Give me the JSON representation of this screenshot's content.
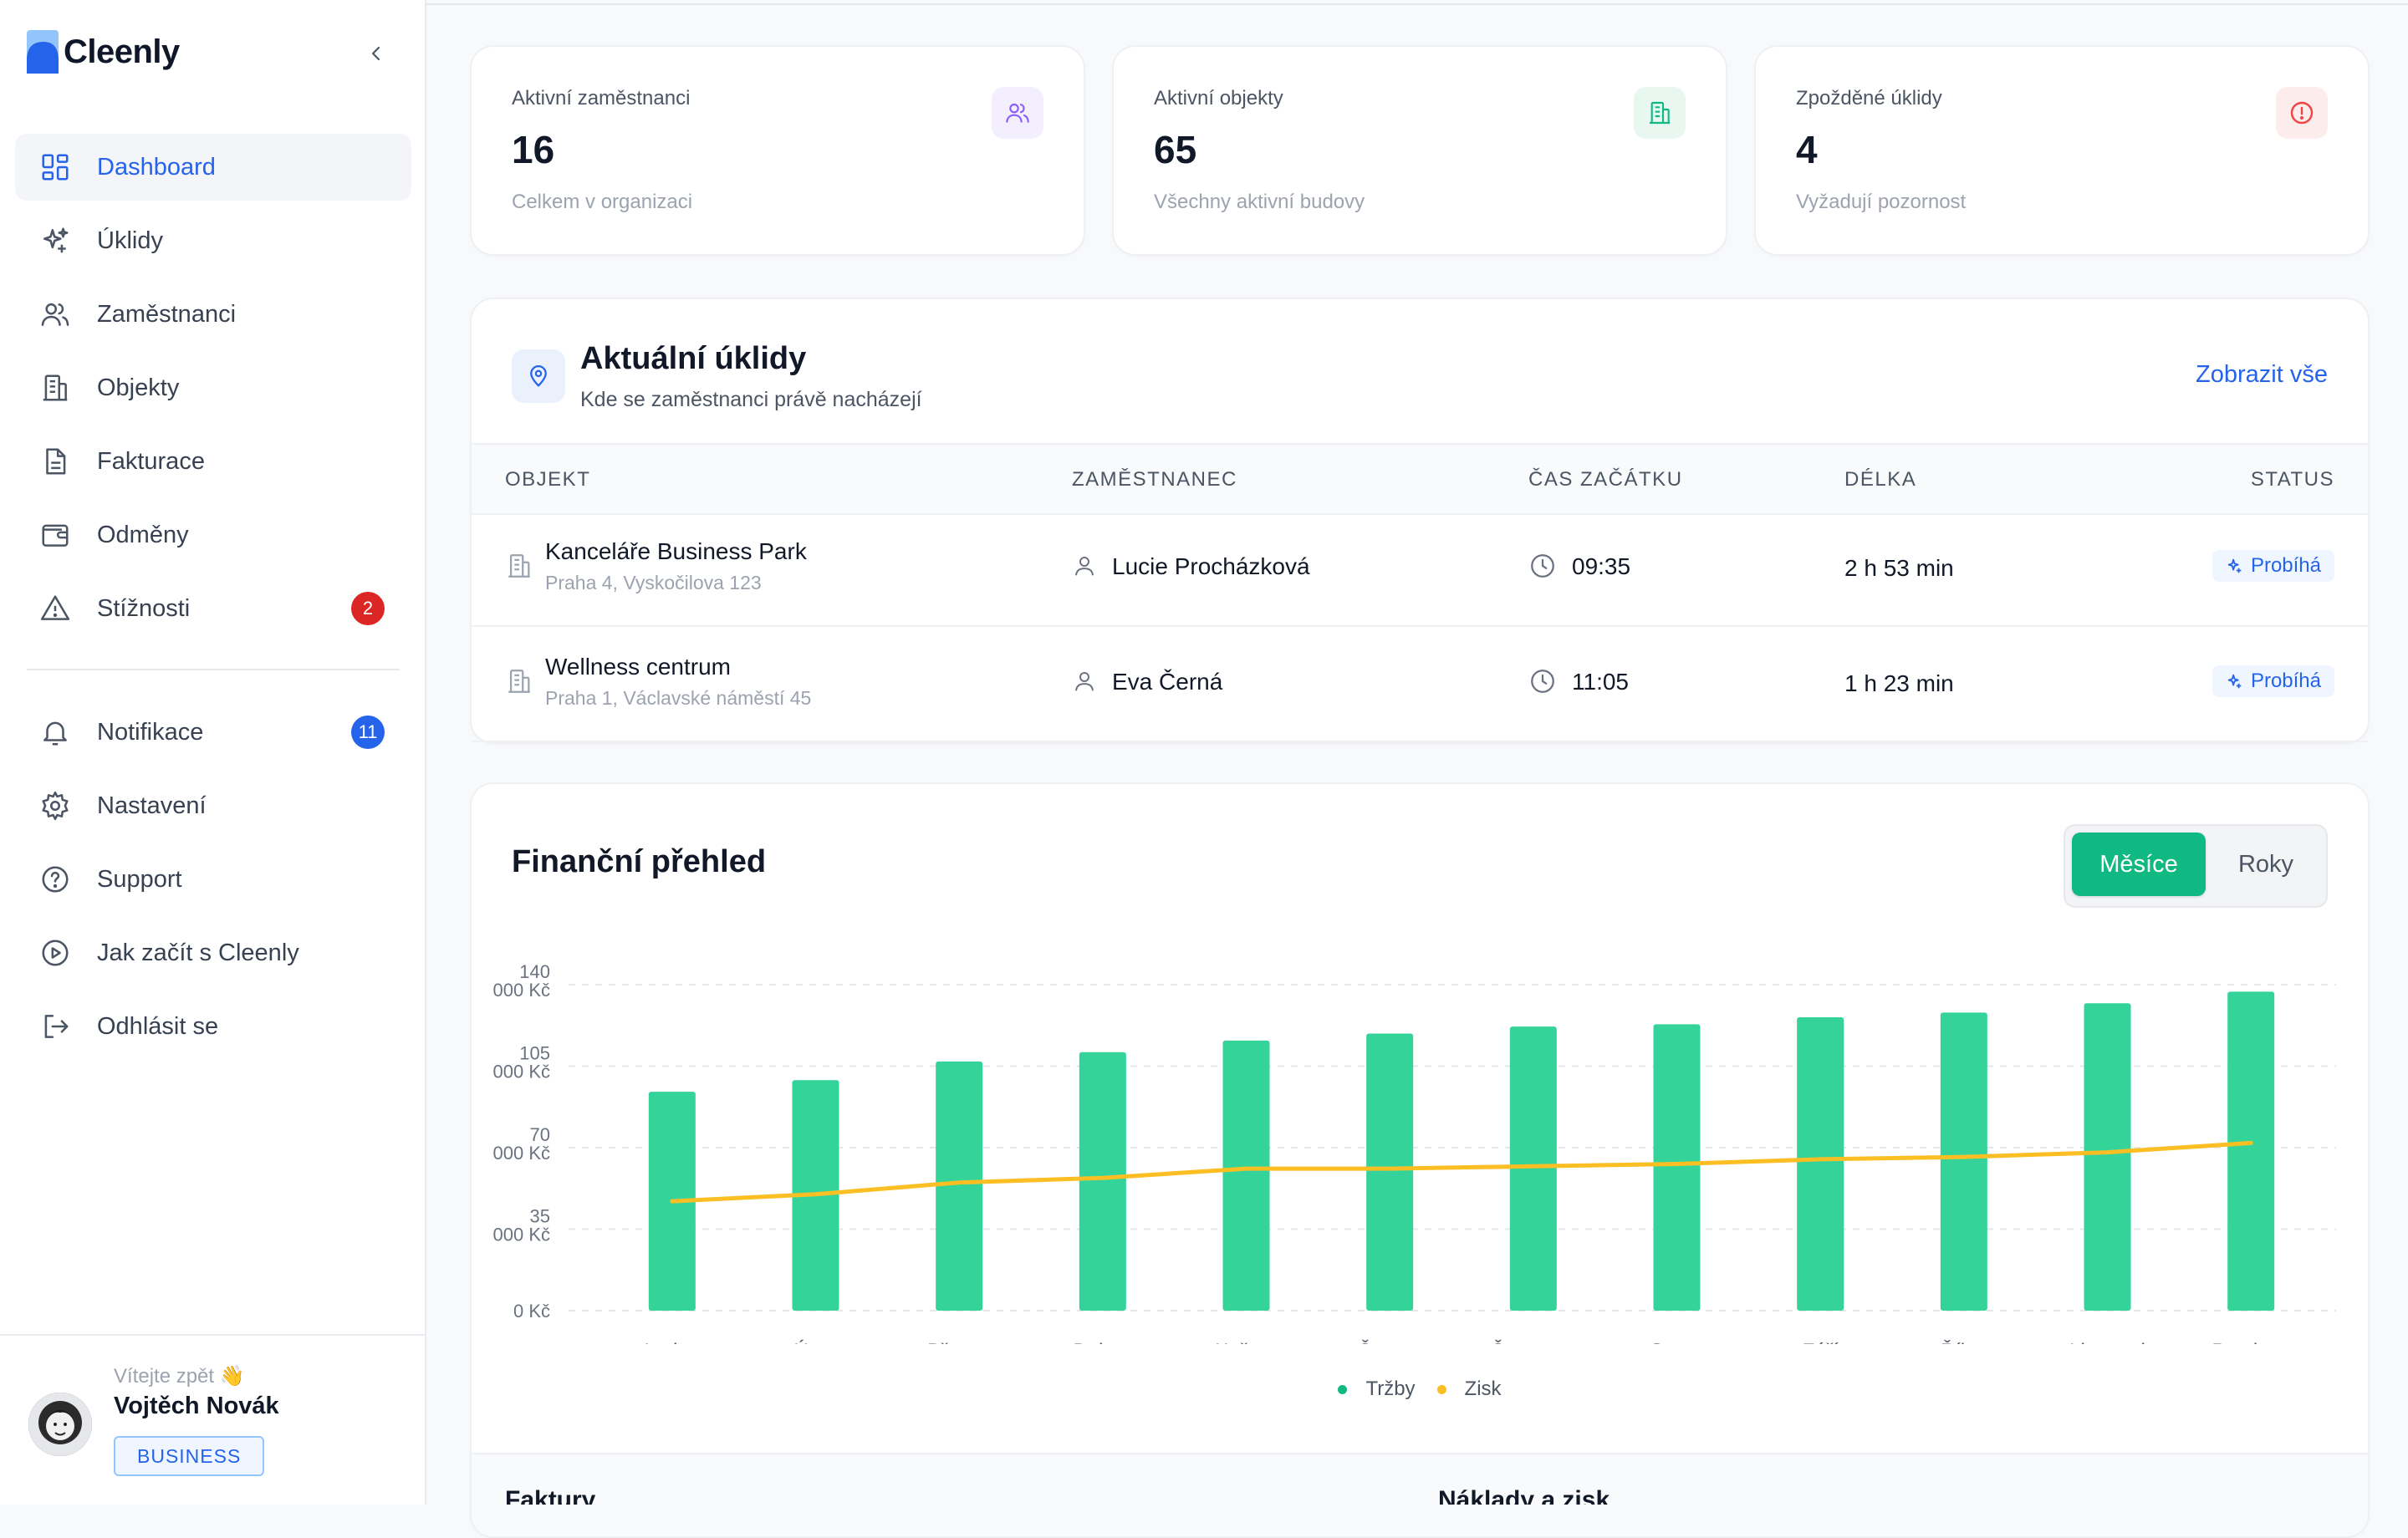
{
  "app": {
    "name": "Cleenly"
  },
  "sidebar": {
    "items": [
      {
        "label": "Dashboard",
        "icon": "grid-icon",
        "active": true
      },
      {
        "label": "Úklidy",
        "icon": "sparkles-icon"
      },
      {
        "label": "Zaměstnanci",
        "icon": "users-icon"
      },
      {
        "label": "Objekty",
        "icon": "building-icon"
      },
      {
        "label": "Fakturace",
        "icon": "document-icon"
      },
      {
        "label": "Odměny",
        "icon": "wallet-icon"
      },
      {
        "label": "Stížnosti",
        "icon": "warning-icon",
        "badge": "2",
        "badge_color": "#dc2626"
      }
    ],
    "items2": [
      {
        "label": "Notifikace",
        "icon": "bell-icon",
        "badge": "11",
        "badge_color": "#2563eb"
      },
      {
        "label": "Nastavení",
        "icon": "gear-icon"
      },
      {
        "label": "Support",
        "icon": "help-icon"
      },
      {
        "label": "Jak začít s Cleenly",
        "icon": "play-icon"
      },
      {
        "label": "Odhlásit se",
        "icon": "logout-icon"
      }
    ],
    "footer": {
      "welcome": "Vítejte zpět 👋",
      "user": "Vojtěch Novák",
      "plan": "BUSINESS"
    }
  },
  "stats": [
    {
      "label": "Aktivní zaměstnanci",
      "value": "16",
      "sub": "Celkem v organizaci",
      "icon": "users-icon",
      "color": "#8b5cf6",
      "bg": "#f3efff"
    },
    {
      "label": "Aktivní objekty",
      "value": "65",
      "sub": "Všechny aktivní budovy",
      "icon": "building-icon",
      "color": "#10b981",
      "bg": "#e8f8f1"
    },
    {
      "label": "Zpožděné úklidy",
      "value": "4",
      "sub": "Vyžadují pozornost",
      "icon": "alert-circle-icon",
      "color": "#ef4444",
      "bg": "#fdecec"
    }
  ],
  "current_cleanings": {
    "title": "Aktuální úklidy",
    "subtitle": "Kde se zaměstnanci právě nacházejí",
    "link": "Zobrazit vše",
    "columns": [
      "OBJEKT",
      "ZAMĚSTNANEC",
      "ČAS ZAČÁTKU",
      "DÉLKA",
      "STATUS"
    ],
    "rows": [
      {
        "object": "Kanceláře Business Park",
        "address": "Praha 4, Vyskočilova 123",
        "employee": "Lucie Procházková",
        "start": "09:35",
        "duration": "2 h 53 min",
        "status": "Probíhá"
      },
      {
        "object": "Wellness centrum",
        "address": "Praha 1, Václavské náměstí 45",
        "employee": "Eva Černá",
        "start": "11:05",
        "duration": "1 h 23 min",
        "status": "Probíhá"
      }
    ]
  },
  "finance": {
    "title": "Finanční přehled",
    "toggle": [
      "Měsíce",
      "Roky"
    ],
    "legend": [
      "Tržby",
      "Zisk"
    ]
  },
  "lower_titles": [
    "Faktury",
    "Náklady a zisk"
  ],
  "chart_data": {
    "type": "bar",
    "categories": [
      "Leden",
      "Únor",
      "Březen",
      "Duben",
      "Květen",
      "Červen",
      "Červenec",
      "Srpen",
      "Září",
      "Říjen",
      "Listopad",
      "Prosinec"
    ],
    "series": [
      {
        "name": "Tržby",
        "type": "bar",
        "color": "#34d399",
        "values": [
          94,
          99,
          107,
          111,
          116,
          119,
          122,
          123,
          126,
          128,
          132,
          137
        ]
      },
      {
        "name": "Zisk",
        "type": "line",
        "color": "#fbbf24",
        "values": [
          47,
          50,
          55,
          57,
          61,
          61,
          62,
          63,
          65,
          66,
          68,
          72
        ]
      }
    ],
    "yticks": [
      "0 Kč",
      "35 000 Kč",
      "70 000 Kč",
      "105 000 Kč",
      "140 000 Kč"
    ],
    "ylim": [
      0,
      140
    ],
    "grid": true,
    "legend_position": "bottom"
  }
}
